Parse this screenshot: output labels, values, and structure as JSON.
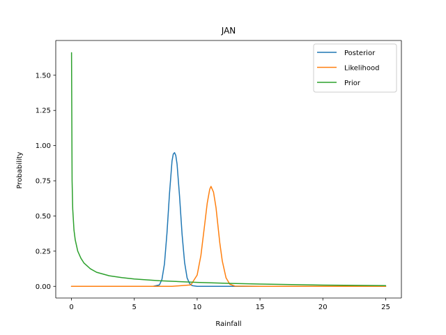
{
  "chart_data": {
    "type": "line",
    "title": "JAN",
    "xlabel": "Rainfall",
    "ylabel": "Probability",
    "xlim": [
      -1.25,
      26.25
    ],
    "ylim": [
      -0.083,
      1.747
    ],
    "xticks": [
      0,
      5,
      10,
      15,
      20,
      25
    ],
    "xtick_labels": [
      "0",
      "5",
      "10",
      "15",
      "20",
      "25"
    ],
    "yticks": [
      0.0,
      0.25,
      0.5,
      0.75,
      1.0,
      1.25,
      1.5
    ],
    "ytick_labels": [
      "0.00",
      "0.25",
      "0.50",
      "0.75",
      "1.00",
      "1.25",
      "1.50"
    ],
    "grid": false,
    "legend_position": "top-right",
    "series": [
      {
        "name": "Posterior",
        "color": "#1f77b4",
        "x": [
          0,
          6.5,
          7.0,
          7.2,
          7.4,
          7.6,
          7.8,
          8.0,
          8.1,
          8.2,
          8.3,
          8.4,
          8.6,
          8.8,
          9.0,
          9.2,
          9.4,
          9.6,
          10.0,
          12.5,
          15,
          20,
          25
        ],
        "y": [
          0.0,
          0.0,
          0.01,
          0.05,
          0.16,
          0.38,
          0.66,
          0.89,
          0.94,
          0.95,
          0.93,
          0.87,
          0.64,
          0.37,
          0.17,
          0.06,
          0.02,
          0.005,
          0.0,
          0.0,
          0.0,
          0.0,
          0.0
        ]
      },
      {
        "name": "Likelihood",
        "color": "#ff7f0e",
        "x": [
          0,
          5,
          8,
          9.5,
          10.0,
          10.3,
          10.6,
          10.8,
          11.0,
          11.1,
          11.3,
          11.5,
          11.8,
          12.0,
          12.3,
          12.6,
          13.0,
          15,
          20,
          25
        ],
        "y": [
          0.0,
          0.0,
          0.0,
          0.01,
          0.08,
          0.22,
          0.44,
          0.59,
          0.69,
          0.71,
          0.67,
          0.56,
          0.31,
          0.18,
          0.06,
          0.015,
          0.002,
          0.0,
          0.0,
          0.0
        ]
      },
      {
        "name": "Prior",
        "color": "#2ca02c",
        "x": [
          0.005,
          0.05,
          0.1,
          0.2,
          0.3,
          0.5,
          0.75,
          1.0,
          1.5,
          2.0,
          3.0,
          4.0,
          5.0,
          7.0,
          10.0,
          12.5,
          15.0,
          20.0,
          25.0
        ],
        "y": [
          1.66,
          0.75,
          0.55,
          0.4,
          0.33,
          0.25,
          0.2,
          0.165,
          0.125,
          0.1,
          0.075,
          0.062,
          0.052,
          0.04,
          0.028,
          0.021,
          0.016,
          0.009,
          0.005
        ]
      }
    ]
  }
}
